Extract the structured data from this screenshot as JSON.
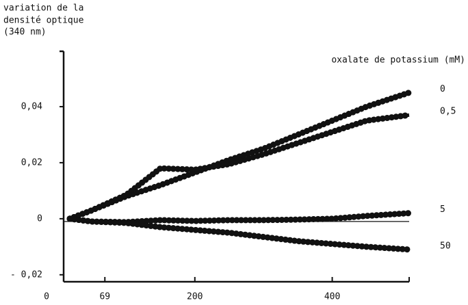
{
  "chart_data": {
    "type": "line",
    "y_label": [
      "variation de la",
      "densité optique",
      "(340 nm)"
    ],
    "legend_title": "oxalate de potassium (mM)",
    "x": [
      18,
      50,
      100,
      150,
      200,
      250,
      300,
      350,
      400,
      450,
      512
    ],
    "series": [
      {
        "name": "0",
        "color": "#111111",
        "values": [
          0,
          0.003,
          0.008,
          0.012,
          0.0165,
          0.021,
          0.025,
          0.03,
          0.035,
          0.04,
          0.045
        ]
      },
      {
        "name": "0,5",
        "color": "#111111",
        "values": [
          0,
          0.003,
          0.0085,
          0.018,
          0.0175,
          0.0195,
          0.023,
          0.027,
          0.031,
          0.035,
          0.037
        ]
      },
      {
        "name": "5",
        "color": "#111111",
        "values": [
          0,
          -0.001,
          -0.0012,
          -0.0005,
          -0.0008,
          -0.0005,
          -0.0005,
          -0.0003,
          0,
          0.001,
          0.002
        ]
      },
      {
        "name": "50",
        "color": "#111111",
        "values": [
          0,
          -0.001,
          -0.0015,
          -0.003,
          -0.004,
          -0.005,
          -0.0065,
          -0.008,
          -0.009,
          -0.01,
          -0.011
        ]
      }
    ],
    "xlim": [
      0,
      512
    ],
    "xticks": [
      0,
      69,
      200,
      400
    ],
    "ylim": [
      -0.022,
      0.06
    ],
    "yticks": [
      {
        "value": -0.02,
        "label": "- 0,02"
      },
      0,
      {
        "value": 0.02,
        "label": "0,02"
      },
      {
        "value": 0.04,
        "label": "0,04"
      }
    ]
  }
}
